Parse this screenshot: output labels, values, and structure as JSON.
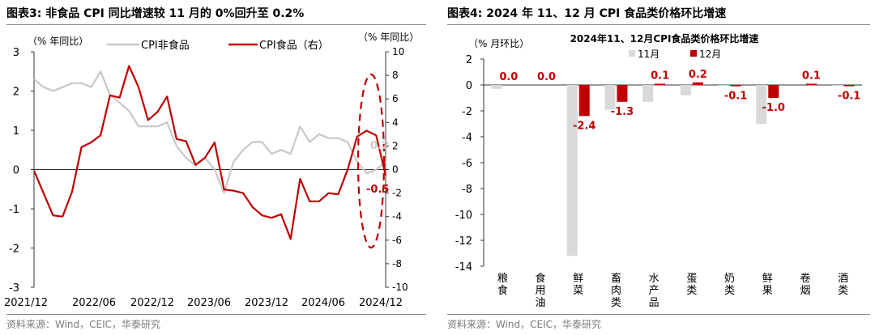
{
  "left": {
    "title": "图表3:  非食品 CPI 同比增速较 11 月的 0%回升至 0.2%",
    "source": "资料来源：Wind，CEIC，华泰研究"
  },
  "right": {
    "title": "图表4:   2024 年 11、12 月 CPI 食品类价格环比增速",
    "source": "资料来源：Wind，CEIC，华泰研究"
  },
  "chart_data": [
    {
      "type": "line",
      "title": "",
      "ylabel_left": "（% 年同比）",
      "ylabel_right": "（% 年同比）",
      "ylim_left": [
        -3,
        3
      ],
      "ylim_right": [
        -10,
        10
      ],
      "x_ticks": [
        "2021/12",
        "2022/06",
        "2022/12",
        "2023/06",
        "2023/12",
        "2024/06",
        "2024/12"
      ],
      "y_ticks_left": [
        -3,
        -2,
        -1,
        0,
        1,
        2,
        3
      ],
      "y_ticks_right": [
        -10,
        -8,
        -6,
        -4,
        -2,
        0,
        2,
        4,
        6,
        8,
        10
      ],
      "legend_position": "top",
      "series": [
        {
          "name": "CPI非食品",
          "axis": "left",
          "color": "#c8c8c8",
          "values": [
            2.3,
            2.1,
            2.0,
            2.1,
            2.2,
            2.2,
            2.1,
            2.5,
            1.9,
            1.7,
            1.5,
            1.1,
            1.1,
            1.1,
            1.2,
            0.6,
            0.3,
            0.1,
            0.3,
            0.0,
            -0.6,
            0.2,
            0.5,
            0.7,
            0.7,
            0.4,
            0.5,
            0.4,
            1.1,
            0.7,
            0.9,
            0.8,
            0.8,
            0.7,
            0.2,
            -0.1,
            0.0,
            0.2
          ]
        },
        {
          "name": "CPI食品（右）",
          "axis": "right",
          "color": "#c00000",
          "values": [
            -0.1,
            -2.0,
            -3.9,
            -4.0,
            -1.9,
            1.9,
            2.3,
            2.9,
            6.3,
            6.1,
            8.8,
            7.0,
            4.2,
            4.9,
            6.2,
            2.6,
            2.4,
            0.4,
            1.0,
            2.3,
            -1.7,
            -1.8,
            -2.0,
            -3.2,
            -3.9,
            -4.1,
            -3.8,
            -5.9,
            -0.8,
            -2.7,
            -2.7,
            -2.0,
            -2.1,
            0.0,
            2.8,
            3.3,
            2.9,
            -0.5
          ]
        }
      ],
      "annotations": [
        {
          "text": "0.2",
          "color": "#c8c8c8"
        },
        {
          "text": "-0.5",
          "color": "#c00000"
        }
      ]
    },
    {
      "type": "bar",
      "title": "2024年11、12月CPI食品类价格环比增速",
      "ylabel": "（% 月环比）",
      "ylim": [
        -14,
        2
      ],
      "y_ticks": [
        -14,
        -12,
        -10,
        -8,
        -6,
        -4,
        -2,
        0,
        2
      ],
      "legend_position": "top",
      "categories": [
        "粮食",
        "食用油",
        "鲜菜",
        "畜肉类",
        "水产品",
        "蛋类",
        "奶类",
        "鲜果",
        "卷烟",
        "酒类"
      ],
      "series": [
        {
          "name": "11月",
          "color": "#d9d9d9",
          "values": [
            -0.3,
            0.0,
            -13.2,
            -1.9,
            -1.3,
            -0.8,
            -0.1,
            -3.0,
            0.0,
            -0.1
          ]
        },
        {
          "name": "12月",
          "color": "#c00000",
          "values": [
            0.0,
            0.0,
            -2.4,
            -1.3,
            0.1,
            0.2,
            -0.1,
            -1.0,
            0.1,
            -0.1
          ]
        }
      ],
      "data_labels": [
        "0.0",
        "0.0",
        "-2.4",
        "-1.3",
        "0.1",
        "0.2",
        "-0.1",
        "-1.0",
        "0.1",
        "-0.1"
      ]
    }
  ]
}
